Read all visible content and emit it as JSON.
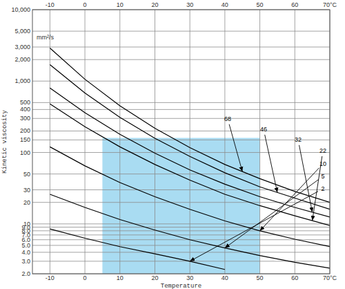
{
  "chart_data": {
    "type": "line",
    "x_label": "Temperature",
    "y_label": "Kinetic viscosity",
    "y_unit": "mm²/s",
    "x": [
      -10,
      0,
      10,
      20,
      30,
      40,
      50,
      60,
      70
    ],
    "series": [
      {
        "name": "68",
        "color": "#000000",
        "values": [
          2900,
          1060,
          450,
          218,
          117,
          68,
          43,
          28.5,
          20
        ]
      },
      {
        "name": "46",
        "color": "#000000",
        "values": [
          1700,
          680,
          310,
          158,
          88,
          52,
          33,
          23,
          16
        ]
      },
      {
        "name": "32",
        "color": "#000000",
        "values": [
          800,
          360,
          180,
          98,
          57,
          36,
          24,
          17,
          12.5
        ]
      },
      {
        "name": "22",
        "color": "#000000",
        "values": [
          480,
          230,
          120,
          68,
          41,
          26,
          18,
          13,
          9.5
        ]
      },
      {
        "name": "10",
        "color": "#000000",
        "values": [
          120,
          65,
          38,
          24,
          16,
          11,
          8,
          6.1,
          4.8
        ]
      },
      {
        "name": "5",
        "color": "#000000",
        "values": [
          26,
          17,
          11.5,
          8.2,
          6,
          4.6,
          3.6,
          2.9,
          2.4
        ]
      },
      {
        "name": "2",
        "color": "#000000",
        "values": [
          8.5,
          6.3,
          4.8,
          3.8,
          3,
          2.3,
          null,
          null,
          null
        ]
      }
    ],
    "xlim": [
      -15,
      70
    ],
    "ylim": [
      2,
      10000
    ],
    "xticks": [
      -10,
      0,
      10,
      20,
      30,
      40,
      50,
      60,
      {
        "value": 70,
        "label": "70°C"
      }
    ],
    "yticks": [
      {
        "value": 10000,
        "label": "10,000"
      },
      {
        "value": 5000,
        "label": "5,000"
      },
      {
        "value": 3000,
        "label": "3,000"
      },
      {
        "value": 2000,
        "label": "2,000"
      },
      {
        "value": 1000,
        "label": "1,000"
      },
      500,
      400,
      300,
      200,
      150,
      100,
      50,
      30,
      20,
      10,
      {
        "value": 9,
        "label": "9.0"
      },
      {
        "value": 8,
        "label": "8.0"
      },
      {
        "value": 7,
        "label": "7.0"
      },
      {
        "value": 6,
        "label": "6.0"
      },
      {
        "value": 5,
        "label": "5.0"
      },
      {
        "value": 4,
        "label": "4.0"
      },
      {
        "value": 3,
        "label": "3.0"
      },
      {
        "value": 2,
        "label": "2.0"
      }
    ],
    "log": "y",
    "grid": true,
    "shaded_region": {
      "x": [
        5,
        50
      ],
      "y": [
        2,
        160
      ],
      "color": "#a9dcf2"
    }
  }
}
